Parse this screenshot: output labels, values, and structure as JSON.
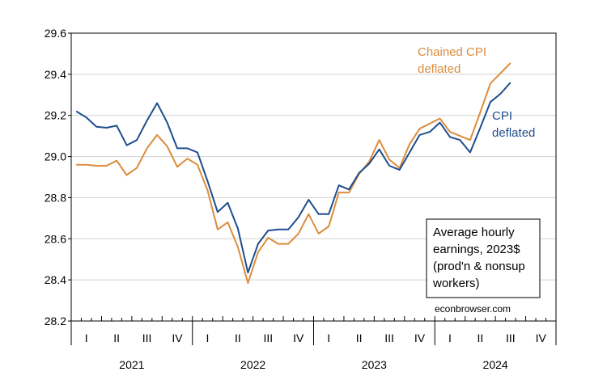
{
  "chart_data": {
    "type": "line",
    "ylim": [
      28.2,
      29.6
    ],
    "yticks": [
      "28.2",
      "28.4",
      "28.6",
      "28.8",
      "29.0",
      "29.2",
      "29.4",
      "29.6"
    ],
    "quarter_labels": [
      "I",
      "II",
      "III",
      "IV",
      "I",
      "II",
      "III",
      "IV",
      "I",
      "II",
      "III",
      "IV",
      "I",
      "II",
      "III",
      "IV"
    ],
    "year_labels": [
      "2021",
      "2022",
      "2023",
      "2024"
    ],
    "x": [
      "2021-01",
      "2021-02",
      "2021-03",
      "2021-04",
      "2021-05",
      "2021-06",
      "2021-07",
      "2021-08",
      "2021-09",
      "2021-10",
      "2021-11",
      "2021-12",
      "2022-01",
      "2022-02",
      "2022-03",
      "2022-04",
      "2022-05",
      "2022-06",
      "2022-07",
      "2022-08",
      "2022-09",
      "2022-10",
      "2022-11",
      "2022-12",
      "2023-01",
      "2023-02",
      "2023-03",
      "2023-04",
      "2023-05",
      "2023-06",
      "2023-07",
      "2023-08",
      "2023-09",
      "2023-10",
      "2023-11",
      "2023-12",
      "2024-01",
      "2024-02",
      "2024-03",
      "2024-04",
      "2024-05",
      "2024-06",
      "2024-07",
      "2024-08"
    ],
    "series": [
      {
        "name": "CPI deflated",
        "label_lines": [
          "CPI",
          "deflated"
        ],
        "color": "#1f4e8c",
        "values": [
          29.22,
          29.19,
          29.145,
          29.14,
          29.15,
          29.055,
          29.08,
          29.175,
          29.26,
          29.165,
          29.04,
          29.04,
          29.02,
          28.88,
          28.73,
          28.775,
          28.65,
          28.435,
          28.575,
          28.64,
          28.645,
          28.645,
          28.705,
          28.79,
          28.72,
          28.72,
          28.86,
          28.84,
          28.92,
          28.965,
          29.035,
          28.955,
          28.935,
          29.02,
          29.105,
          29.12,
          29.165,
          29.095,
          29.08,
          29.02,
          29.14,
          29.265,
          29.305,
          29.36
        ]
      },
      {
        "name": "Chained CPI deflated",
        "label_lines": [
          "Chained CPI",
          "deflated"
        ],
        "color": "#dc8c3c",
        "values": [
          28.96,
          28.96,
          28.955,
          28.955,
          28.98,
          28.91,
          28.945,
          29.04,
          29.105,
          29.05,
          28.95,
          28.99,
          28.96,
          28.835,
          28.645,
          28.68,
          28.56,
          28.385,
          28.535,
          28.605,
          28.575,
          28.575,
          28.625,
          28.72,
          28.625,
          28.66,
          28.825,
          28.825,
          28.915,
          28.975,
          29.08,
          28.985,
          28.945,
          29.06,
          29.135,
          29.16,
          29.185,
          29.12,
          29.1,
          29.08,
          29.215,
          29.355,
          29.405,
          29.455
        ]
      }
    ],
    "annotation_lines": [
      "Average hourly",
      "earnings, 2023$",
      "(prod'n & nonsup",
      "workers)"
    ],
    "source": "econbrowser.com",
    "grid": true
  }
}
